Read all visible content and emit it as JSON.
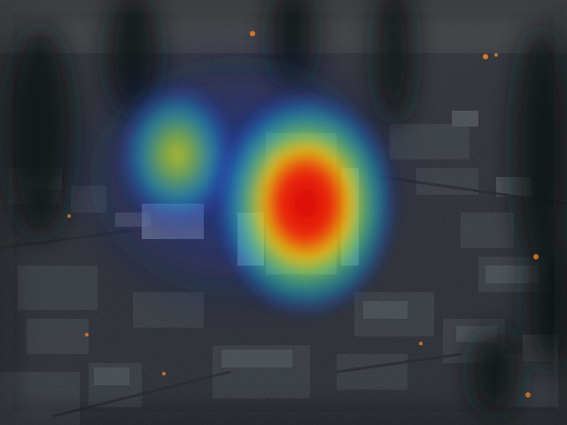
{
  "image": {
    "description_colors": {
      "sky": "#3c3e43",
      "city_dark": "#1a1d22",
      "smoke": "#0f1114",
      "fire": "#ff8a2a",
      "heat_red": "#e80000",
      "heat_yellow": "#f2e600",
      "heat_cyan": "#19d6d6",
      "heat_blue": "#1f3fb5"
    },
    "overlay": "attention-heatmap"
  }
}
